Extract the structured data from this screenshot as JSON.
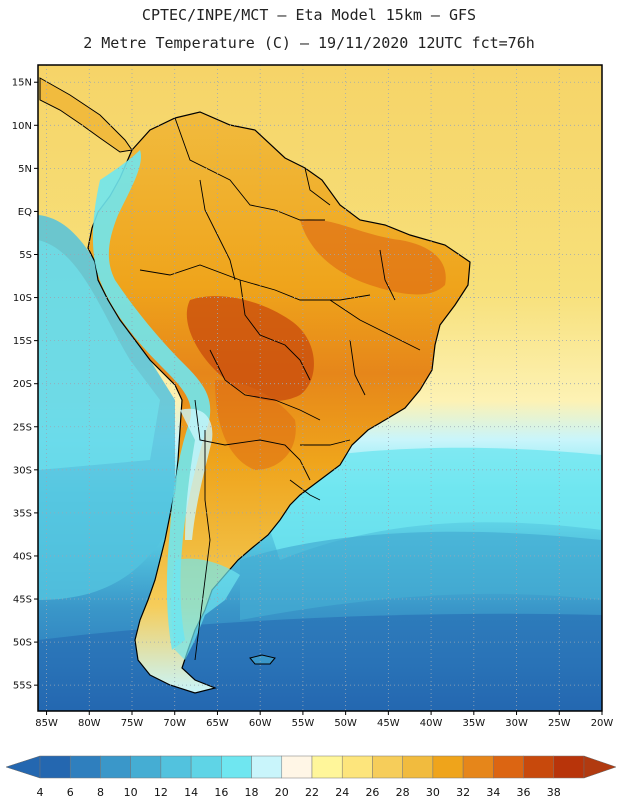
{
  "header": {
    "line1": "CPTEC/INPE/MCT –  Eta Model 15km – GFS",
    "line2": "2 Metre Temperature (C) – 19/11/2020 12UTC fct=76h"
  },
  "map": {
    "lon_ticks": [
      "85W",
      "80W",
      "75W",
      "70W",
      "65W",
      "60W",
      "55W",
      "50W",
      "45W",
      "40W",
      "35W",
      "30W",
      "25W",
      "20W"
    ],
    "lat_ticks": [
      "15N",
      "10N",
      "5N",
      "EQ",
      "5S",
      "10S",
      "15S",
      "20S",
      "25S",
      "30S",
      "35S",
      "40S",
      "45S",
      "50S",
      "55S"
    ],
    "lon_range": [
      -86,
      -20
    ],
    "lat_range": [
      17,
      -58
    ],
    "grid": "dotted"
  },
  "colorbar": {
    "labels": [
      "4",
      "6",
      "8",
      "10",
      "12",
      "14",
      "16",
      "18",
      "20",
      "22",
      "24",
      "26",
      "28",
      "30",
      "32",
      "34",
      "36",
      "38"
    ],
    "colors": [
      "#2467b0",
      "#2f7fbe",
      "#3a97c9",
      "#45add3",
      "#52c2de",
      "#5fd4e6",
      "#6fe6f0",
      "#c9f5fb",
      "#fff6e6",
      "#fff69a",
      "#fde57c",
      "#f6cd5a",
      "#f1bb3e",
      "#efa41b",
      "#e6861a",
      "#dc6512",
      "#c8490c",
      "#b8340a"
    ]
  },
  "regions": {
    "ocean_north": "#f6d469",
    "ocean_tropics": "#f5e27e",
    "pacific_equator": "#c9f5fb",
    "pacific_south": "#52c2de",
    "atlantic_south": "#52c2de",
    "southern_deep": "#2f7fbe",
    "land_hot": "#efa41b",
    "land_very_hot": "#c8490c",
    "andes": "#6fe6f0"
  }
}
